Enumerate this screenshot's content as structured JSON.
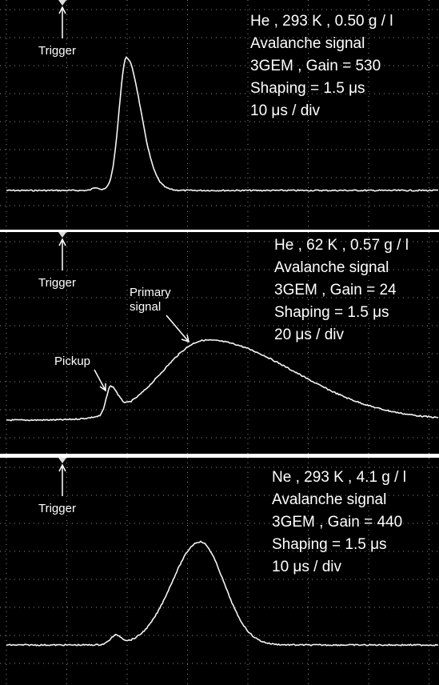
{
  "panels": [
    {
      "trigger": "Trigger",
      "lines": [
        "He , 293 K , 0.50 g / l",
        "Avalanche signal",
        "3GEM , Gain = 530",
        "Shaping = 1.5 μs",
        "10 μs / div"
      ]
    },
    {
      "trigger": "Trigger",
      "lines": [
        "He , 62 K , 0.57 g / l",
        "Avalanche signal",
        "3GEM , Gain = 24",
        "Shaping = 1.5 μs",
        "20 μs / div"
      ],
      "annotations": {
        "primary": [
          "Primary",
          "signal"
        ],
        "pickup": "Pickup"
      }
    },
    {
      "trigger": "Trigger",
      "lines": [
        "Ne , 293 K , 4.1 g / l",
        "Avalanche signal",
        "3GEM , Gain = 440",
        "Shaping = 1.5 μs",
        "10 μs / div"
      ]
    }
  ]
}
